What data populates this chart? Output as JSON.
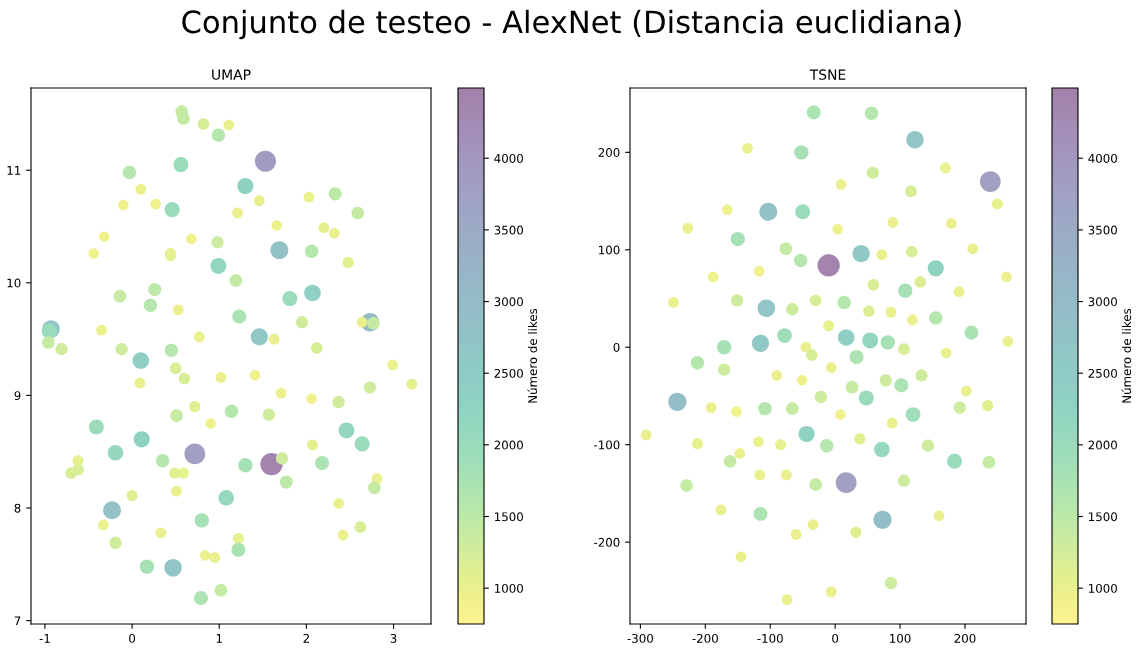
{
  "chart_data": [
    {
      "type": "bubble",
      "title": "UMAP",
      "sizes": [
        0.32,
        0.32,
        0.27,
        0.23,
        0.36,
        0.89,
        0.45,
        0.36,
        0.52,
        0.23,
        0.34,
        0.23,
        0.22,
        0.22,
        0.45,
        0.23,
        0.32,
        0.23,
        0.22,
        0.24,
        0.23,
        0.22,
        0.22,
        0.3,
        0.22,
        0.24,
        0.24,
        0.64,
        0.36,
        0.25,
        0.5,
        0.32,
        0.32,
        0.34,
        0.36,
        0.23,
        0.45,
        0.55,
        0.61,
        0.45,
        0.32,
        0.23,
        0.39,
        0.3,
        0.68,
        0.23,
        0.32,
        0.59,
        0.23,
        0.23,
        0.3,
        0.3,
        0.36,
        0.27,
        0.55,
        0.27,
        0.27,
        0.23,
        0.23,
        0.22,
        0.23,
        0.24,
        0.3,
        0.23,
        0.22,
        0.3,
        0.25,
        0.36,
        0.32,
        0.3,
        0.22,
        0.45,
        0.52,
        0.5,
        0.45,
        0.24,
        0.48,
        0.86,
        1,
        0.3,
        0.36,
        0.24,
        0.27,
        0.27,
        0.41,
        0.39,
        0.25,
        0.24,
        0.34,
        0.23,
        0.32,
        0.23,
        0.25,
        0.48,
        0.23,
        0.64,
        0.23,
        0.41,
        0.23,
        0.27,
        0.23,
        0.24,
        0.3,
        0.39,
        0.23,
        0.23,
        0.41,
        0.61,
        0.32,
        0.39
      ],
      "annotations": [
        "Conjunto de testeo - AlexNet (Distancia euclidiana)"
      ],
      "clabel": "Número de likes",
      "clim": [
        750,
        4490
      ],
      "cticks": [
        1000,
        1500,
        2000,
        2500,
        3000,
        3500,
        4000
      ],
      "xlim": [
        -1.16,
        3.43
      ],
      "ylim": [
        6.97,
        11.73
      ],
      "xticks": [
        -1,
        0,
        1,
        2,
        3
      ],
      "yticks": [
        7,
        8,
        9,
        10,
        11
      ],
      "x": [
        0.57,
        0.59,
        0.82,
        1.11,
        0.99,
        1.53,
        0.56,
        -0.03,
        1.3,
        0.1,
        2.33,
        2.03,
        -0.1,
        0.27,
        0.46,
        1.46,
        2.59,
        1.21,
        1.66,
        2.2,
        2.32,
        -0.32,
        0.68,
        0.98,
        -0.44,
        0.44,
        0.44,
        1.69,
        2.06,
        2.48,
        0.99,
        1.19,
        -0.14,
        0.26,
        0.21,
        0.53,
        1.81,
        2.07,
        -0.93,
        -0.95,
        -0.96,
        -0.35,
        1.23,
        1.95,
        2.73,
        2.64,
        2.77,
        1.46,
        0.77,
        1.63,
        -0.81,
        -0.12,
        0.45,
        2.12,
        0.1,
        0.5,
        0.6,
        0.09,
        1.02,
        1.41,
        2.99,
        3.21,
        2.73,
        1.71,
        2.06,
        2.37,
        0.72,
        1.14,
        0.51,
        1.57,
        0.9,
        -0.41,
        0.11,
        2.46,
        2.64,
        2.07,
        -0.19,
        0.72,
        1.6,
        1.72,
        0.35,
        -0.62,
        -0.7,
        -0.62,
        1.3,
        2.18,
        0.49,
        0.59,
        1.77,
        2.81,
        2.78,
        0.51,
        0.0,
        1.08,
        2.37,
        -0.23,
        -0.33,
        0.8,
        0.33,
        2.62,
        2.42,
        1.22,
        -0.19,
        1.22,
        0.84,
        0.95,
        0.17,
        0.47,
        1.02,
        0.79
      ],
      "values": [
        11.52,
        11.46,
        11.41,
        11.4,
        11.31,
        11.08,
        11.05,
        10.98,
        10.86,
        10.83,
        10.79,
        10.76,
        10.69,
        10.7,
        10.65,
        10.73,
        10.62,
        10.62,
        10.51,
        10.49,
        10.44,
        10.41,
        10.39,
        10.36,
        10.26,
        10.26,
        10.24,
        10.29,
        10.28,
        10.18,
        10.15,
        10.02,
        9.88,
        9.94,
        9.8,
        9.76,
        9.86,
        9.91,
        9.59,
        9.57,
        9.47,
        9.58,
        9.7,
        9.65,
        9.65,
        9.65,
        9.64,
        9.52,
        9.52,
        9.5,
        9.41,
        9.41,
        9.4,
        9.42,
        9.31,
        9.24,
        9.15,
        9.11,
        9.16,
        9.18,
        9.27,
        9.1,
        9.07,
        9.02,
        8.97,
        8.94,
        8.9,
        8.86,
        8.82,
        8.83,
        8.75,
        8.72,
        8.61,
        8.69,
        8.57,
        8.56,
        8.49,
        8.48,
        8.39,
        8.44,
        8.42,
        8.42,
        8.31,
        8.34,
        8.38,
        8.4,
        8.31,
        8.31,
        8.23,
        8.26,
        8.18,
        8.15,
        8.11,
        8.09,
        8.04,
        7.98,
        7.85,
        7.89,
        7.78,
        7.83,
        7.76,
        7.73,
        7.69,
        7.63,
        7.58,
        7.56,
        7.48,
        7.47,
        7.27,
        7.2
      ],
      "cvalues": [
        1400,
        1400,
        1200,
        1000,
        1600,
        3900,
        2000,
        1600,
        2300,
        1000,
        1500,
        1000,
        950,
        950,
        2000,
        1000,
        1400,
        1000,
        950,
        1050,
        1000,
        950,
        950,
        1300,
        950,
        1050,
        1050,
        2800,
        1600,
        1100,
        2200,
        1400,
        1400,
        1500,
        1600,
        1000,
        2000,
        2400,
        2700,
        2000,
        1400,
        1000,
        1700,
        1300,
        3000,
        1000,
        1400,
        2600,
        1000,
        1000,
        1300,
        1300,
        1600,
        1200,
        2400,
        1200,
        1200,
        1000,
        1000,
        950,
        1000,
        1050,
        1300,
        1000,
        950,
        1300,
        1100,
        1600,
        1400,
        1300,
        950,
        2000,
        2300,
        2200,
        2000,
        1050,
        2100,
        3800,
        4400,
        1300,
        1600,
        1050,
        1200,
        1200,
        1800,
        1700,
        1100,
        1050,
        1500,
        1000,
        1400,
        1000,
        1100,
        2100,
        1000,
        2800,
        1000,
        1800,
        1000,
        1200,
        1000,
        1050,
        1300,
        1700,
        1000,
        1000,
        1800,
        2700,
        1400,
        1700
      ]
    },
    {
      "type": "bubble",
      "title": "TSNE",
      "sizes": [
        0.39,
        0.36,
        0.61,
        0.23,
        0.41,
        0.23,
        0.86,
        0.3,
        0.23,
        0.27,
        0.24,
        0.22,
        0.64,
        0.45,
        0.23,
        0.23,
        0.23,
        0.22,
        0.41,
        0.32,
        0.59,
        0.23,
        0.27,
        0.23,
        0.36,
        1,
        0.52,
        0.22,
        0.22,
        0.23,
        0.27,
        0.26,
        0.23,
        0.41,
        0.23,
        0.3,
        0.61,
        0.3,
        0.27,
        0.36,
        0.26,
        0.23,
        0.23,
        0.36,
        0.24,
        0.39,
        0.43,
        0.55,
        0.5,
        0.41,
        0.59,
        0.23,
        0.41,
        0.23,
        0.27,
        0.27,
        0.23,
        0.39,
        0.36,
        0.3,
        0.23,
        0.23,
        0.22,
        0.3,
        0.3,
        0.39,
        0.32,
        0.23,
        0.3,
        0.45,
        0.66,
        0.23,
        0.22,
        0.36,
        0.32,
        0.3,
        0.25,
        0.22,
        0.43,
        0.23,
        0.23,
        0.52,
        0.24,
        0.23,
        0.24,
        0.36,
        0.25,
        0.48,
        0.3,
        0.23,
        0.32,
        0.45,
        0.32,
        0.23,
        0.23,
        0.3,
        0.32,
        0.32,
        0.86,
        0.23,
        0.39,
        0.66,
        0.23,
        0.23,
        0.23,
        0.25,
        0.23,
        0.3,
        0.23,
        0.23
      ],
      "clabel": "Número de likes",
      "clim": [
        750,
        4490
      ],
      "cticks": [
        1000,
        1500,
        2000,
        2500,
        3000,
        3500,
        4000
      ],
      "xlim": [
        -316,
        294
      ],
      "ylim": [
        -284,
        266
      ],
      "xticks": [
        -300,
        -200,
        -100,
        0,
        100,
        200
      ],
      "yticks": [
        -200,
        -100,
        0,
        100,
        200
      ],
      "x": [
        -33,
        56,
        123,
        -135,
        -52,
        170,
        239,
        58,
        9,
        117,
        250,
        -166,
        -103,
        -50,
        89,
        179,
        -227,
        4,
        -150,
        -76,
        40,
        72,
        118,
        212,
        -53,
        -10,
        155,
        -188,
        -117,
        264,
        59,
        131,
        191,
        108,
        -249,
        -151,
        -106,
        -66,
        -30,
        14,
        52,
        86,
        119,
        155,
        -10,
        210,
        -78,
        17,
        54,
        81,
        -115,
        266,
        -171,
        -45,
        -36,
        106,
        171,
        33,
        -212,
        -171,
        -6,
        -90,
        -51,
        78,
        133,
        102,
        26,
        202,
        -22,
        48,
        -243,
        -191,
        -152,
        -108,
        -66,
        192,
        235,
        8,
        120,
        88,
        -291,
        -44,
        -212,
        -118,
        -84,
        -13,
        38,
        72,
        143,
        -147,
        -162,
        184,
        237,
        -116,
        -75,
        106,
        -229,
        -30,
        17,
        -176,
        -115,
        73,
        160,
        -34,
        -60,
        32,
        -145,
        86,
        -74,
        -6
      ],
      "values": [
        241,
        240,
        213,
        204,
        200,
        184,
        170,
        179,
        167,
        160,
        147,
        141,
        139,
        139,
        128,
        127,
        122,
        121,
        111,
        101,
        96,
        95,
        98,
        101,
        89,
        84,
        81,
        72,
        78,
        72,
        64,
        67,
        57,
        58,
        46,
        48,
        40,
        39,
        48,
        46,
        37,
        36,
        28,
        30,
        22,
        15,
        12,
        10,
        7,
        5,
        4,
        6,
        0,
        0,
        -8,
        -2,
        -6,
        -10,
        -16,
        -23,
        -21,
        -29,
        -34,
        -34,
        -29,
        -39,
        -41,
        -45,
        -51,
        -52,
        -56,
        -62,
        -66,
        -63,
        -63,
        -62,
        -60,
        -69,
        -69,
        -78,
        -90,
        -89,
        -99,
        -97,
        -100,
        -101,
        -94,
        -105,
        -101,
        -109,
        -117,
        -117,
        -118,
        -131,
        -131,
        -137,
        -142,
        -141,
        -139,
        -167,
        -171,
        -177,
        -173,
        -182,
        -192,
        -190,
        -215,
        -242,
        -259,
        -251
      ],
      "cvalues": [
        1700,
        1600,
        2700,
        1000,
        1800,
        1000,
        3800,
        1300,
        1000,
        1200,
        1050,
        950,
        2800,
        2000,
        1000,
        1000,
        1000,
        950,
        1800,
        1400,
        2600,
        1000,
        1200,
        1000,
        1600,
        4400,
        2300,
        950,
        950,
        1000,
        1200,
        1150,
        1000,
        1800,
        1000,
        1300,
        2700,
        1300,
        1200,
        1600,
        1150,
        1000,
        1000,
        1600,
        1050,
        1700,
        1900,
        2400,
        2200,
        1800,
        2600,
        1000,
        1800,
        1000,
        1200,
        1200,
        1000,
        1700,
        1600,
        1300,
        1000,
        1000,
        950,
        1300,
        1300,
        1700,
        1400,
        1000,
        1300,
        2000,
        2900,
        1000,
        950,
        1600,
        1400,
        1300,
        1100,
        950,
        1900,
        1000,
        1000,
        2300,
        1050,
        1000,
        1050,
        1600,
        1100,
        2100,
        1300,
        1000,
        1400,
        2000,
        1400,
        1000,
        1000,
        1300,
        1400,
        1400,
        3800,
        1000,
        1700,
        2900,
        1000,
        1000,
        1000,
        1100,
        1000,
        1300,
        1000,
        1000
      ]
    }
  ]
}
